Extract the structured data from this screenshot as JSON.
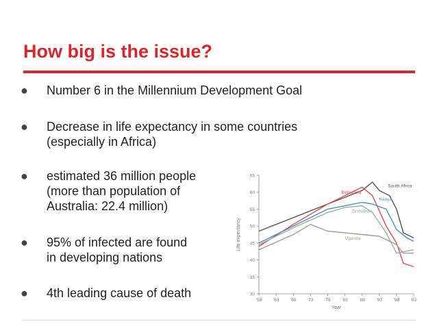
{
  "slide": {
    "title": "How big is the issue?",
    "bullets": [
      "Number 6 in the Millennium Development Goal",
      "Decrease in life expectancy in some countries\n(especially in Africa)",
      "estimated 36 million people\n(more than population of\nAustralia: 22.4 million)",
      "95% of infected are found\nin developing nations",
      "4th leading cause of death"
    ],
    "bullet_glyph": "●",
    "accent_color": "#d8262b"
  },
  "chart_data": {
    "type": "line",
    "xlabel": "Year",
    "ylabel": "Life expectancy",
    "xlim": [
      1958,
      2003
    ],
    "ylim": [
      30,
      65
    ],
    "x_ticks": [
      "'58",
      "'63",
      "'68",
      "'73",
      "'78",
      "'83",
      "'88",
      "'93",
      "'98",
      "'03"
    ],
    "y_ticks": [
      30,
      35,
      40,
      45,
      50,
      55,
      60,
      65
    ],
    "grid": false,
    "series": [
      {
        "name": "South Africa",
        "color": "#555555",
        "x": [
          1958,
          1968,
          1978,
          1988,
          1991,
          1993,
          1996,
          1998,
          2000,
          2003
        ],
        "y": [
          48.5,
          52.5,
          56.5,
          60.5,
          63,
          60.5,
          59,
          55,
          48,
          46.5
        ]
      },
      {
        "name": "Botswana",
        "color": "#e8474a",
        "x": [
          1958,
          1968,
          1978,
          1988,
          1991,
          1995,
          1998,
          2000,
          2003
        ],
        "y": [
          44,
          50.5,
          56.5,
          61.5,
          59,
          50,
          45,
          39,
          38
        ]
      },
      {
        "name": "Kenya",
        "color": "#4a8fc4",
        "x": [
          1958,
          1968,
          1978,
          1988,
          1991,
          1995,
          1998,
          2001,
          2003
        ],
        "y": [
          45,
          50,
          55,
          57,
          56.5,
          55,
          49,
          46.5,
          45.5
        ]
      },
      {
        "name": "Zimbabwe",
        "color": "#8fb59c",
        "x": [
          1958,
          1968,
          1978,
          1983,
          1988,
          1991,
          1995,
          1998,
          2003
        ],
        "y": [
          44.5,
          49.5,
          54,
          55.5,
          56,
          54,
          48,
          42,
          43
        ]
      },
      {
        "name": "Uganda",
        "color": "#9e9e96",
        "x": [
          1958,
          1968,
          1973,
          1978,
          1983,
          1988,
          1993,
          1998,
          2000,
          2003
        ],
        "y": [
          43,
          47.5,
          50.5,
          48.5,
          48,
          47.5,
          47,
          44.5,
          42,
          42
        ]
      }
    ]
  }
}
